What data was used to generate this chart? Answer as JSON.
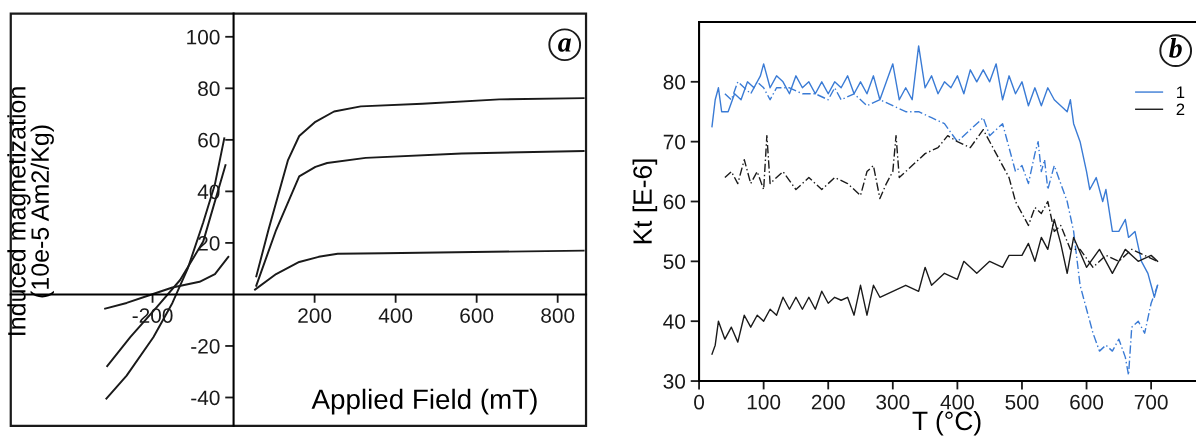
{
  "chart_data": [
    {
      "type": "line",
      "xlabel": "Applied Field (mT)",
      "ylabel": "Induced magnetization\n(10e-5 Am2/Kg)",
      "annotations": [
        "a"
      ],
      "xlim": [
        -550,
        870
      ],
      "ylim": [
        -51,
        109
      ],
      "xticks": [
        -200,
        200,
        400,
        600,
        800
      ],
      "yticks": [
        -40,
        -20,
        20,
        40,
        60,
        80,
        100
      ],
      "grid": false,
      "legend": false,
      "marker": "none",
      "series": [
        {
          "color": "#1a1a1a",
          "x": [
            56,
            86,
            134,
            162,
            202,
            248,
            314,
            466,
            656,
            864
          ],
          "values": [
            7,
            25,
            52,
            61.5,
            67,
            71,
            73,
            74,
            75.7,
            76.2
          ]
        },
        {
          "color": "#1a1a1a",
          "x": [
            56,
            105,
            162,
            202,
            231,
            326,
            563,
            864
          ],
          "values": [
            3.4,
            25,
            45.8,
            49.5,
            51,
            53,
            54.7,
            55.7
          ]
        },
        {
          "color": "#1a1a1a",
          "x": [
            53,
            105,
            162,
            210,
            257,
            370,
            864
          ],
          "values": [
            1.9,
            7.9,
            12.6,
            14.6,
            15.8,
            16,
            17
          ]
        },
        {
          "color": "#1a1a1a",
          "x": [
            -314,
            -264,
            -198,
            -151,
            -113,
            -75,
            -46,
            -23
          ],
          "values": [
            -40.4,
            -31.5,
            -16.6,
            -3.3,
            10.1,
            27.9,
            42.8,
            60.6
          ]
        },
        {
          "color": "#1a1a1a",
          "x": [
            -312,
            -255,
            -189,
            -132,
            -75,
            -20
          ],
          "values": [
            -27.8,
            -16.6,
            -4.8,
            5.6,
            20.5,
            50.2
          ]
        },
        {
          "color": "#1a1a1a",
          "x": [
            -317,
            -264,
            -208,
            -151,
            -84,
            -46,
            -13
          ],
          "values": [
            -5.5,
            -3.3,
            -0.3,
            2.7,
            4.9,
            7.9,
            14.6
          ]
        }
      ]
    },
    {
      "type": "line",
      "xlabel": "T (°C)",
      "ylabel": "Kt [E-6]",
      "annotations": [
        "b"
      ],
      "xlim": [
        0,
        768
      ],
      "ylim": [
        30,
        90
      ],
      "xticks": [
        0,
        100,
        200,
        300,
        400,
        500,
        600,
        700
      ],
      "yticks": [
        30,
        40,
        50,
        60,
        70,
        80
      ],
      "grid": false,
      "legend": "top right",
      "marker": "none",
      "series": [
        {
          "name": "1",
          "color": "#3a7bd5",
          "line_style": "solid",
          "x": [
            20,
            25,
            30,
            35,
            45,
            55,
            65,
            75,
            85,
            95,
            100,
            110,
            120,
            130,
            140,
            150,
            160,
            170,
            180,
            190,
            200,
            210,
            220,
            230,
            240,
            250,
            260,
            270,
            280,
            290,
            300,
            310,
            320,
            330,
            340,
            350,
            360,
            370,
            380,
            390,
            400,
            410,
            420,
            430,
            440,
            450,
            460,
            470,
            480,
            490,
            500,
            510,
            520,
            530,
            540,
            550,
            560,
            570,
            575,
            580,
            590,
            600,
            605,
            615,
            625,
            630,
            640,
            650,
            660,
            665,
            675,
            685,
            695,
            700,
            705,
            710
          ],
          "values": [
            72.5,
            77,
            79,
            75,
            75,
            78,
            77,
            80,
            79,
            81,
            83,
            79,
            81,
            80,
            78,
            81,
            79,
            80,
            78,
            80,
            78,
            80,
            79,
            81,
            78,
            80,
            78,
            81,
            77,
            80,
            83,
            77,
            79,
            77,
            86,
            79,
            81,
            78,
            80,
            79,
            81,
            78,
            82,
            80,
            82,
            80,
            83,
            77,
            81,
            78,
            80,
            76,
            79,
            76,
            79,
            77,
            76,
            75,
            77,
            73,
            70,
            65,
            62,
            64,
            60,
            62,
            55,
            55,
            57,
            54,
            55,
            50,
            48,
            46,
            44,
            46
          ]
        },
        {
          "color": "#3a7bd5",
          "line_style": "dashed",
          "x": [
            40,
            50,
            60,
            70,
            80,
            90,
            100,
            110,
            120,
            140,
            160,
            180,
            200,
            210,
            220,
            240,
            260,
            280,
            300,
            320,
            340,
            360,
            380,
            400,
            420,
            440,
            450,
            460,
            470,
            480,
            490,
            500,
            510,
            520,
            525,
            530,
            535,
            540,
            550,
            560,
            570,
            580,
            590,
            600,
            610,
            620,
            630,
            640,
            650,
            660,
            665,
            670,
            680,
            690,
            700,
            710
          ],
          "values": [
            78,
            77,
            80,
            79,
            78,
            80,
            79,
            77,
            79,
            79,
            78,
            78,
            77,
            79,
            77,
            78,
            76,
            77,
            76,
            75,
            75,
            74,
            73,
            70,
            72,
            74,
            71,
            72,
            73,
            69,
            65,
            66,
            63,
            68,
            70,
            65,
            67,
            62,
            66,
            63,
            60,
            55,
            46,
            42,
            38,
            35,
            36,
            35,
            37,
            34,
            31,
            39,
            40,
            38,
            43,
            46
          ]
        },
        {
          "name": "2",
          "color": "#1a1a1a",
          "line_style": "solid",
          "x": [
            20,
            25,
            30,
            40,
            50,
            60,
            70,
            80,
            90,
            100,
            110,
            120,
            130,
            140,
            150,
            160,
            170,
            180,
            190,
            200,
            210,
            220,
            230,
            240,
            250,
            260,
            270,
            280,
            300,
            320,
            340,
            350,
            360,
            380,
            400,
            410,
            430,
            450,
            470,
            480,
            500,
            510,
            520,
            530,
            540,
            550,
            560,
            570,
            580,
            600,
            620,
            640,
            660,
            680,
            700,
            710
          ],
          "values": [
            34.5,
            36,
            40,
            37,
            39,
            36.5,
            41,
            39,
            41,
            40,
            42,
            41,
            44,
            42,
            44,
            42,
            44,
            42,
            45,
            43,
            44,
            43.5,
            44,
            41,
            46,
            41,
            46,
            44,
            45,
            46,
            45,
            49,
            46,
            48,
            47,
            50,
            48,
            50,
            49,
            51,
            51,
            53,
            50,
            54,
            52,
            57,
            53,
            48,
            54,
            49,
            52,
            48,
            52,
            50,
            51,
            50
          ]
        },
        {
          "color": "#1a1a1a",
          "line_style": "dashed",
          "x": [
            40,
            50,
            60,
            70,
            80,
            90,
            100,
            105,
            110,
            130,
            150,
            170,
            190,
            210,
            230,
            250,
            260,
            270,
            280,
            290,
            300,
            305,
            310,
            330,
            350,
            370,
            385,
            400,
            420,
            440,
            460,
            480,
            490,
            500,
            510,
            520,
            530,
            540,
            550,
            560,
            575,
            590,
            610,
            630,
            650,
            670,
            690,
            710
          ],
          "values": [
            64,
            65,
            63,
            67,
            63,
            65,
            62,
            71,
            63,
            65,
            62,
            64,
            62,
            64,
            63,
            61,
            65,
            66,
            60.5,
            63,
            65,
            71,
            64,
            66,
            68,
            69,
            71,
            70,
            69,
            72,
            68,
            64,
            60,
            58,
            56,
            59,
            58,
            60,
            55,
            56,
            52,
            52,
            49,
            51,
            50,
            52,
            51,
            50
          ]
        }
      ]
    }
  ]
}
